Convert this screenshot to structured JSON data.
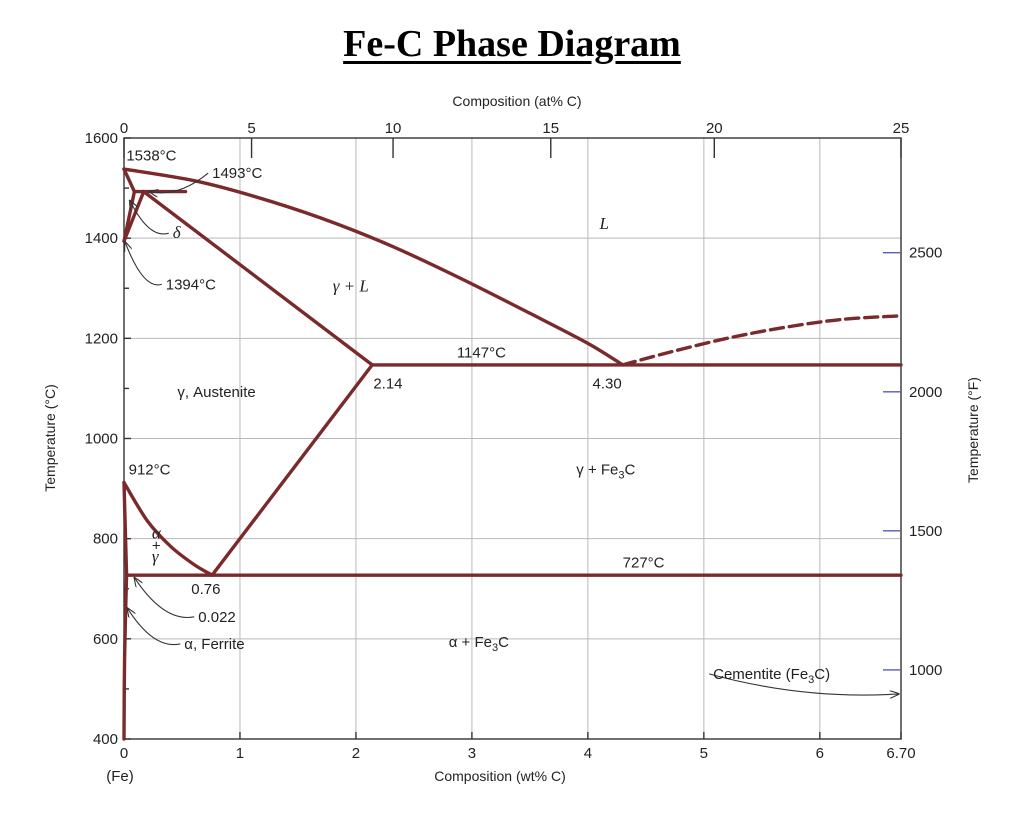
{
  "title": "Fe-C Phase Diagram",
  "chart_data": {
    "type": "line",
    "title": "Fe-C Phase Diagram",
    "xlabel": "Composition (wt% C)",
    "x_top_label": "Composition (at% C)",
    "ylabel": "Temperature (°C)",
    "y_right_label": "Temperature (°F)",
    "xlim": [
      0,
      6.7
    ],
    "ylim": [
      400,
      1600
    ],
    "x_ticks": [
      "0",
      "1",
      "2",
      "3",
      "4",
      "5",
      "6",
      "6.70"
    ],
    "x_tick_values": [
      0,
      1,
      2,
      3,
      4,
      5,
      6,
      6.7
    ],
    "x_left_end_label": "(Fe)",
    "top_ticks": [
      "0",
      "5",
      "10",
      "15",
      "20",
      "25"
    ],
    "top_tick_wt": [
      0,
      1.1,
      2.32,
      3.68,
      5.09,
      6.7
    ],
    "y_ticks": [
      "400",
      "600",
      "800",
      "1000",
      "1200",
      "1400",
      "1600"
    ],
    "y_tick_values": [
      400,
      600,
      800,
      1000,
      1200,
      1400,
      1600
    ],
    "right_ticks": [
      "1000",
      "1500",
      "2000",
      "2500"
    ],
    "right_tick_c": [
      537.8,
      815.6,
      1093.3,
      1371.1
    ],
    "grid": true,
    "series": [
      {
        "style": "solid",
        "x": [
          0,
          0.6,
          1.1,
          1.7,
          2.3,
          2.9,
          3.5,
          4.0,
          4.3
        ],
        "y": [
          1538,
          1515,
          1485,
          1440,
          1385,
          1320,
          1250,
          1190,
          1147
        ]
      },
      {
        "style": "dashed",
        "x": [
          4.3,
          4.7,
          5.2,
          5.7,
          6.2,
          6.7
        ],
        "y": [
          1147,
          1172,
          1200,
          1222,
          1238,
          1245
        ]
      },
      {
        "style": "solid",
        "x": [
          0,
          0.09
        ],
        "y": [
          1538,
          1493
        ]
      },
      {
        "style": "solid",
        "x": [
          0.09,
          0.53
        ],
        "y": [
          1493,
          1493
        ]
      },
      {
        "style": "solid",
        "x": [
          0,
          0.09
        ],
        "y": [
          1394,
          1493
        ]
      },
      {
        "style": "solid",
        "x": [
          0,
          0.17
        ],
        "y": [
          1394,
          1493
        ]
      },
      {
        "style": "solid",
        "x": [
          0.17,
          2.14
        ],
        "y": [
          1493,
          1147
        ]
      },
      {
        "style": "solid",
        "x": [
          2.14,
          6.7
        ],
        "y": [
          1147,
          1147
        ]
      },
      {
        "style": "solid",
        "x": [
          2.14,
          0.76
        ],
        "y": [
          1147,
          727
        ]
      },
      {
        "style": "solid",
        "x": [
          0,
          0.2,
          0.4,
          0.6,
          0.76
        ],
        "y": [
          912,
          836,
          785,
          749,
          727
        ]
      },
      {
        "style": "solid",
        "x": [
          0,
          0.022
        ],
        "y": [
          912,
          727
        ]
      },
      {
        "style": "solid",
        "x": [
          0.022,
          6.7
        ],
        "y": [
          727,
          727
        ]
      },
      {
        "style": "solid",
        "x": [
          0.022,
          0.005,
          0
        ],
        "y": [
          727,
          560,
          400
        ]
      }
    ],
    "annotations": [
      {
        "text": "1538°C",
        "x": 0.02,
        "y": 1555
      },
      {
        "text": "1493°C",
        "x": 0.76,
        "y": 1520,
        "arrow_to": [
          0.22,
          1493
        ]
      },
      {
        "text": "δ",
        "x": 0.42,
        "y": 1400,
        "arrow_to": [
          0.05,
          1475
        ],
        "italic": true
      },
      {
        "text": "1394°C",
        "x": 0.36,
        "y": 1298,
        "arrow_to": [
          0.01,
          1392
        ]
      },
      {
        "text": "L",
        "x": 4.1,
        "y": 1418,
        "italic": true
      },
      {
        "text": "γ + L",
        "x": 1.8,
        "y": 1294,
        "italic": true
      },
      {
        "text": "1147°C",
        "x": 2.87,
        "y": 1162
      },
      {
        "text": "2.14",
        "x": 2.15,
        "y": 1100
      },
      {
        "text": "4.30",
        "x": 4.04,
        "y": 1100
      },
      {
        "text": "γ, Austenite",
        "x": 0.46,
        "y": 1083
      },
      {
        "text": "912°C",
        "x": 0.04,
        "y": 928
      },
      {
        "text": "γ + Fe3C",
        "x": 3.9,
        "y": 928
      },
      {
        "text": "α",
        "x": 0.24,
        "y": 800,
        "italic": true
      },
      {
        "text": "+",
        "x": 0.24,
        "y": 776
      },
      {
        "text": "γ",
        "x": 0.24,
        "y": 753,
        "italic": true
      },
      {
        "text": "727°C",
        "x": 4.3,
        "y": 742
      },
      {
        "text": "0.76",
        "x": 0.58,
        "y": 690
      },
      {
        "text": "0.022",
        "x": 0.64,
        "y": 634,
        "arrow_to": [
          0.09,
          722
        ]
      },
      {
        "text": "α, Ferrite",
        "x": 0.52,
        "y": 580,
        "arrow_to": [
          0.03,
          661
        ]
      },
      {
        "text": "α + Fe3C",
        "x": 2.8,
        "y": 584
      },
      {
        "text": "Cementite (Fe3C)",
        "x": 5.08,
        "y": 520,
        "arrow_to": [
          6.68,
          490
        ]
      }
    ]
  }
}
